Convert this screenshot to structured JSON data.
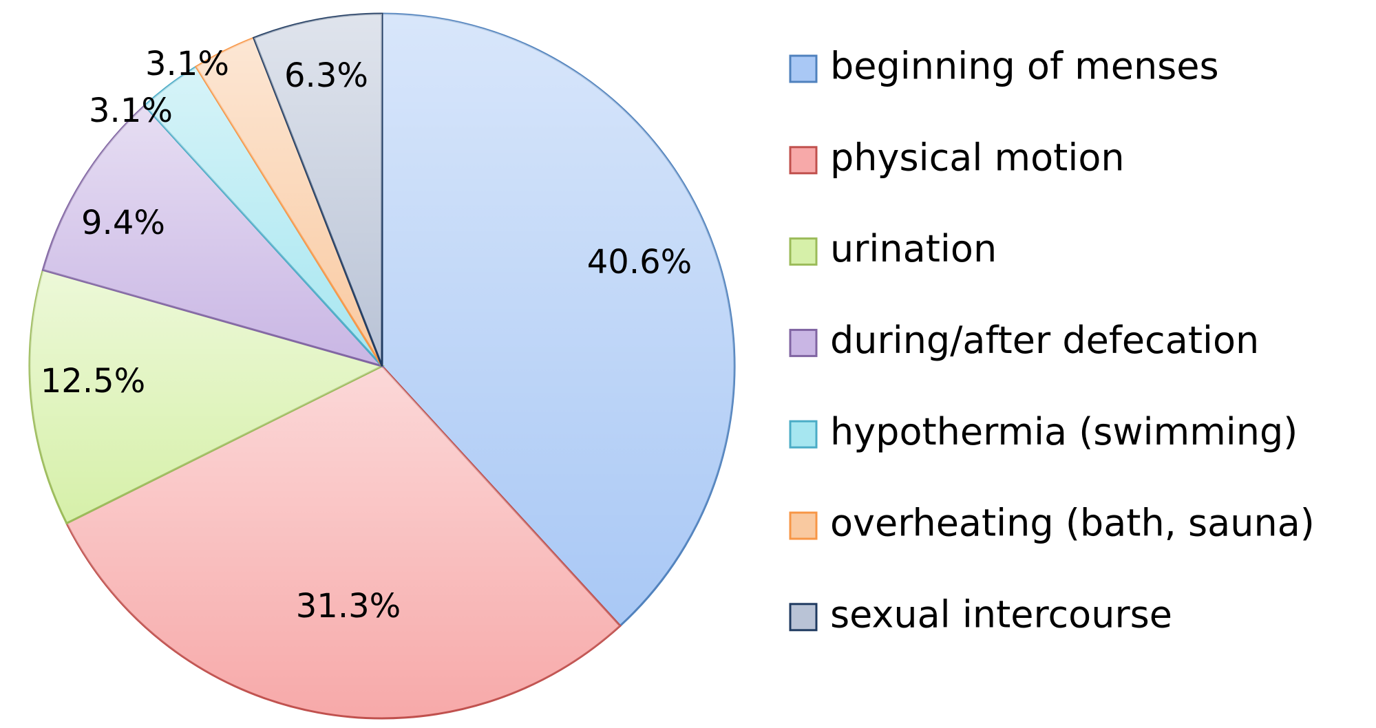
{
  "chart_data": {
    "type": "pie",
    "categories": [
      "beginning of menses",
      "physical motion",
      "urination",
      "during/after defecation",
      "hypothermia (swimming)",
      "overheating (bath, sauna)",
      "sexual intercourse"
    ],
    "values": [
      40.6,
      31.3,
      12.5,
      9.4,
      3.1,
      3.1,
      6.3
    ],
    "value_labels": [
      "40.6%",
      "31.3%",
      "12.5%",
      "9.4%",
      "3.1%",
      "3.1%",
      "6.3%"
    ],
    "colors": [
      "#a9c8f5",
      "#f7a9a9",
      "#d6f0a9",
      "#c9b6e4",
      "#a6e6f0",
      "#f9c9a0",
      "#b9c3d6"
    ],
    "edge_colors": [
      "#4f81bd",
      "#c0504d",
      "#9bbb59",
      "#8064a2",
      "#4bacc6",
      "#f79646",
      "#1f3a60"
    ],
    "legend": "right"
  }
}
